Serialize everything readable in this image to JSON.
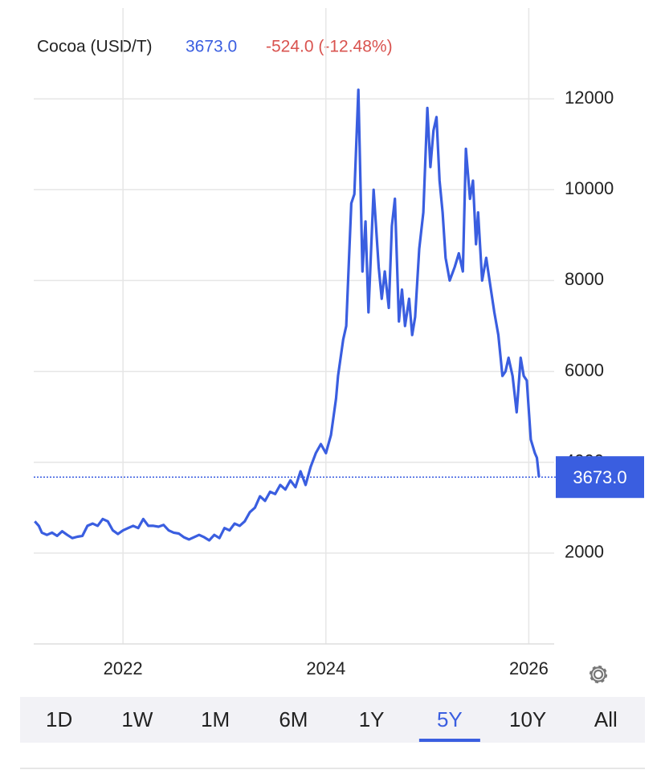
{
  "chart_data": {
    "type": "line",
    "title": "Cocoa (USD/T)",
    "last_price": "3673.0",
    "change": "-524.0 (-12.48%)",
    "x": [
      2021.13,
      2021.17,
      2021.2,
      2021.25,
      2021.3,
      2021.35,
      2021.4,
      2021.45,
      2021.5,
      2021.55,
      2021.6,
      2021.65,
      2021.7,
      2021.75,
      2021.8,
      2021.85,
      2021.9,
      2021.95,
      2022.0,
      2022.05,
      2022.1,
      2022.15,
      2022.2,
      2022.25,
      2022.3,
      2022.35,
      2022.4,
      2022.45,
      2022.5,
      2022.55,
      2022.6,
      2022.65,
      2022.7,
      2022.75,
      2022.8,
      2022.85,
      2022.9,
      2022.95,
      2023.0,
      2023.05,
      2023.1,
      2023.15,
      2023.2,
      2023.25,
      2023.3,
      2023.35,
      2023.4,
      2023.45,
      2023.5,
      2023.55,
      2023.6,
      2023.65,
      2023.7,
      2023.75,
      2023.8,
      2023.85,
      2023.9,
      2023.95,
      2024.0,
      2024.05,
      2024.1,
      2024.12,
      2024.17,
      2024.2,
      2024.25,
      2024.28,
      2024.32,
      2024.36,
      2024.39,
      2024.42,
      2024.47,
      2024.52,
      2024.55,
      2024.58,
      2024.62,
      2024.65,
      2024.68,
      2024.72,
      2024.75,
      2024.78,
      2024.82,
      2024.85,
      2024.88,
      2024.92,
      2024.96,
      2025.0,
      2025.03,
      2025.06,
      2025.09,
      2025.12,
      2025.15,
      2025.18,
      2025.22,
      2025.27,
      2025.31,
      2025.35,
      2025.38,
      2025.42,
      2025.45,
      2025.48,
      2025.5,
      2025.54,
      2025.58,
      2025.62,
      2025.66,
      2025.7,
      2025.74,
      2025.77,
      2025.8,
      2025.84,
      2025.88,
      2025.92,
      2025.95,
      2025.98,
      2026.02,
      2026.06,
      2026.08,
      2026.1
    ],
    "series": [
      {
        "name": "Cocoa",
        "color": "#3a5ee0",
        "values": [
          2700,
          2600,
          2450,
          2400,
          2450,
          2380,
          2480,
          2400,
          2330,
          2360,
          2380,
          2600,
          2650,
          2600,
          2750,
          2700,
          2500,
          2420,
          2500,
          2550,
          2600,
          2550,
          2750,
          2600,
          2600,
          2580,
          2620,
          2500,
          2450,
          2430,
          2350,
          2300,
          2350,
          2400,
          2350,
          2280,
          2400,
          2330,
          2550,
          2500,
          2650,
          2600,
          2700,
          2900,
          3000,
          3250,
          3150,
          3350,
          3300,
          3500,
          3400,
          3600,
          3450,
          3800,
          3500,
          3900,
          4200,
          4400,
          4200,
          4600,
          5400,
          5900,
          6700,
          7000,
          9700,
          9900,
          12200,
          8200,
          9300,
          7300,
          10000,
          8300,
          7600,
          8200,
          7400,
          9200,
          9800,
          7100,
          7800,
          7000,
          7600,
          6800,
          7200,
          8700,
          9500,
          11800,
          10500,
          11300,
          11600,
          10200,
          9500,
          8500,
          8000,
          8300,
          8600,
          8200,
          10900,
          9800,
          10200,
          8800,
          9500,
          8000,
          8500,
          7900,
          7300,
          6800,
          5900,
          6000,
          6300,
          5900,
          5100,
          6300,
          5900,
          5800,
          4500,
          4200,
          4100,
          3673
        ]
      }
    ],
    "xlim": [
      2021.12,
      2026.25
    ],
    "xticks": [
      2022,
      2024,
      2026
    ],
    "ylim": [
      0,
      14000
    ],
    "yticks": [
      2000,
      4000,
      6000,
      8000,
      10000,
      12000
    ],
    "grid": true,
    "tabs": [
      "1D",
      "1W",
      "1M",
      "6M",
      "1Y",
      "5Y",
      "10Y",
      "All"
    ],
    "active_tab": 5
  }
}
